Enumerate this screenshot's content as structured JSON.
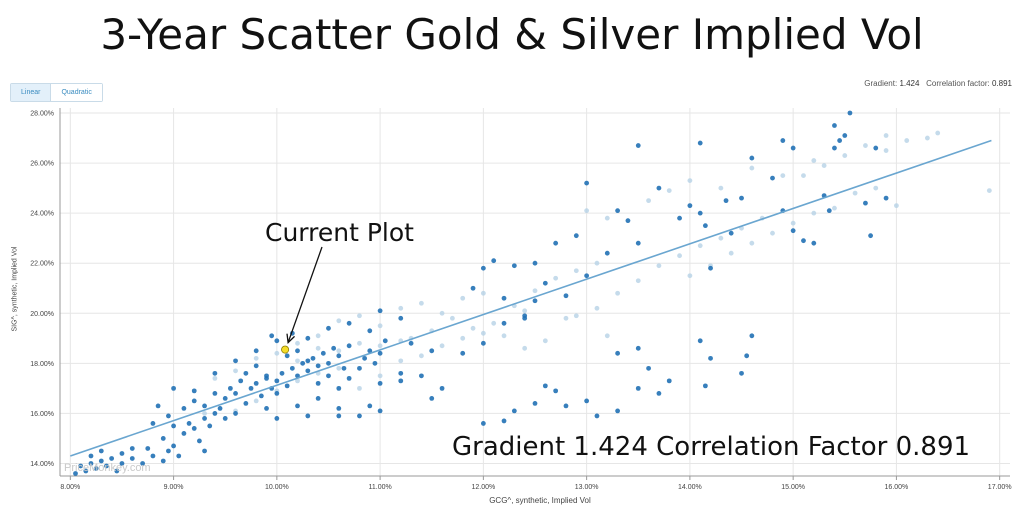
{
  "header": {
    "title": "3-Year Scatter Gold & Silver Implied Vol"
  },
  "controls": {
    "linear_label": "Linear",
    "quadratic_label": "Quadratic",
    "active": "Linear"
  },
  "stats": {
    "gradient_label": "Gradient:",
    "gradient_value": "1.424",
    "correlation_label": "Correlation factor:",
    "correlation_value": "0.891"
  },
  "annotations": {
    "current_plot": "Current Plot",
    "summary": "Gradient 1.424 Correlation Factor 0.891"
  },
  "watermark": "PriceMonkey.com",
  "colors": {
    "point_dark": "#2171b5",
    "point_light": "#b7d2e6",
    "trend": "#6aa6d0",
    "current": "#f5dd2a"
  },
  "chart_data": {
    "type": "scatter",
    "xlabel": "GCG^, synthetic, Implied Vol",
    "ylabel": "SIG^, synthetic, Implied Vol",
    "xlim": [
      7.9,
      17.1
    ],
    "ylim": [
      13.5,
      28.2
    ],
    "x_ticks": [
      "8.00%",
      "9.00%",
      "10.00%",
      "11.00%",
      "12.00%",
      "13.00%",
      "14.00%",
      "15.00%",
      "16.00%",
      "17.00%"
    ],
    "y_ticks": [
      "14.00%",
      "16.00%",
      "18.00%",
      "20.00%",
      "22.00%",
      "24.00%",
      "26.00%",
      "28.00%"
    ],
    "x_tick_values": [
      8,
      9,
      10,
      11,
      12,
      13,
      14,
      15,
      16,
      17
    ],
    "y_tick_values": [
      14,
      16,
      18,
      20,
      22,
      24,
      26,
      28
    ],
    "trendline": {
      "gradient": 1.424,
      "x": [
        8.0,
        16.92
      ],
      "y": [
        14.3,
        26.9
      ]
    },
    "current_point": {
      "x": 10.08,
      "y": 18.55
    },
    "points_dark": [
      [
        8.05,
        13.6
      ],
      [
        8.1,
        13.9
      ],
      [
        8.15,
        13.7
      ],
      [
        8.2,
        14.0
      ],
      [
        8.25,
        13.8
      ],
      [
        8.3,
        14.1
      ],
      [
        8.35,
        13.9
      ],
      [
        8.4,
        14.2
      ],
      [
        8.45,
        13.7
      ],
      [
        8.5,
        14.0
      ],
      [
        8.2,
        14.3
      ],
      [
        8.3,
        14.5
      ],
      [
        8.5,
        14.4
      ],
      [
        8.6,
        14.2
      ],
      [
        8.7,
        14.0
      ],
      [
        8.8,
        14.3
      ],
      [
        8.9,
        14.1
      ],
      [
        8.95,
        14.5
      ],
      [
        8.6,
        14.6
      ],
      [
        8.75,
        14.6
      ],
      [
        8.9,
        15.0
      ],
      [
        9.0,
        14.7
      ],
      [
        9.05,
        14.3
      ],
      [
        9.1,
        15.2
      ],
      [
        9.15,
        15.6
      ],
      [
        9.2,
        15.4
      ],
      [
        9.25,
        14.9
      ],
      [
        9.3,
        15.8
      ],
      [
        9.35,
        15.5
      ],
      [
        9.4,
        16.0
      ],
      [
        9.0,
        15.5
      ],
      [
        9.1,
        16.2
      ],
      [
        9.2,
        16.5
      ],
      [
        9.3,
        16.3
      ],
      [
        9.4,
        16.8
      ],
      [
        9.45,
        16.2
      ],
      [
        9.5,
        16.6
      ],
      [
        9.55,
        17.0
      ],
      [
        9.6,
        16.8
      ],
      [
        9.65,
        17.3
      ],
      [
        9.5,
        15.8
      ],
      [
        9.6,
        16.0
      ],
      [
        9.7,
        16.4
      ],
      [
        9.75,
        17.0
      ],
      [
        9.8,
        17.2
      ],
      [
        9.85,
        16.7
      ],
      [
        9.9,
        17.5
      ],
      [
        9.95,
        17.0
      ],
      [
        10.0,
        17.3
      ],
      [
        10.05,
        17.6
      ],
      [
        9.7,
        17.6
      ],
      [
        9.8,
        17.9
      ],
      [
        9.9,
        17.4
      ],
      [
        10.0,
        16.8
      ],
      [
        10.1,
        17.1
      ],
      [
        10.15,
        17.8
      ],
      [
        10.2,
        17.5
      ],
      [
        10.25,
        18.0
      ],
      [
        10.3,
        17.7
      ],
      [
        10.35,
        18.2
      ],
      [
        10.1,
        18.3
      ],
      [
        10.2,
        18.5
      ],
      [
        10.3,
        18.1
      ],
      [
        10.4,
        17.9
      ],
      [
        10.45,
        18.4
      ],
      [
        10.5,
        18.0
      ],
      [
        10.55,
        18.6
      ],
      [
        10.6,
        18.3
      ],
      [
        10.65,
        17.8
      ],
      [
        10.7,
        18.7
      ],
      [
        10.4,
        17.2
      ],
      [
        10.5,
        17.5
      ],
      [
        10.6,
        17.0
      ],
      [
        10.7,
        17.4
      ],
      [
        10.8,
        17.8
      ],
      [
        10.85,
        18.2
      ],
      [
        10.9,
        18.5
      ],
      [
        10.95,
        18.0
      ],
      [
        11.0,
        18.4
      ],
      [
        11.05,
        18.9
      ],
      [
        10.0,
        18.9
      ],
      [
        10.15,
        19.2
      ],
      [
        10.3,
        19.0
      ],
      [
        10.5,
        19.4
      ],
      [
        10.7,
        19.6
      ],
      [
        10.9,
        19.3
      ],
      [
        11.0,
        20.1
      ],
      [
        11.2,
        19.8
      ],
      [
        11.3,
        18.8
      ],
      [
        11.5,
        18.5
      ],
      [
        9.9,
        16.2
      ],
      [
        10.0,
        15.8
      ],
      [
        10.2,
        16.3
      ],
      [
        10.3,
        15.9
      ],
      [
        10.4,
        16.6
      ],
      [
        10.6,
        16.2
      ],
      [
        10.8,
        15.9
      ],
      [
        11.0,
        17.2
      ],
      [
        11.2,
        17.6
      ],
      [
        11.4,
        17.5
      ],
      [
        9.0,
        17.0
      ],
      [
        9.2,
        16.9
      ],
      [
        9.4,
        17.6
      ],
      [
        9.6,
        18.1
      ],
      [
        9.8,
        18.5
      ],
      [
        9.95,
        19.1
      ],
      [
        8.95,
        15.9
      ],
      [
        8.85,
        16.3
      ],
      [
        8.8,
        15.6
      ],
      [
        9.3,
        14.5
      ],
      [
        11.6,
        17.0
      ],
      [
        11.8,
        18.4
      ],
      [
        12.0,
        18.8
      ],
      [
        12.2,
        19.6
      ],
      [
        12.4,
        19.9
      ],
      [
        12.5,
        20.5
      ],
      [
        12.6,
        21.2
      ],
      [
        12.8,
        20.7
      ],
      [
        13.0,
        21.5
      ],
      [
        13.2,
        22.4
      ],
      [
        12.0,
        21.8
      ],
      [
        12.1,
        22.1
      ],
      [
        12.3,
        21.9
      ],
      [
        12.5,
        22.0
      ],
      [
        12.7,
        22.8
      ],
      [
        12.9,
        23.1
      ],
      [
        13.0,
        25.2
      ],
      [
        13.3,
        24.1
      ],
      [
        13.4,
        23.7
      ],
      [
        13.5,
        22.8
      ],
      [
        13.5,
        26.7
      ],
      [
        13.7,
        25.0
      ],
      [
        13.9,
        23.8
      ],
      [
        14.0,
        24.3
      ],
      [
        14.1,
        24.0
      ],
      [
        14.15,
        23.5
      ],
      [
        14.2,
        21.8
      ],
      [
        14.35,
        24.5
      ],
      [
        14.4,
        23.2
      ],
      [
        14.5,
        24.6
      ],
      [
        14.1,
        26.8
      ],
      [
        14.6,
        26.2
      ],
      [
        14.8,
        25.4
      ],
      [
        14.9,
        24.1
      ],
      [
        15.0,
        23.3
      ],
      [
        15.1,
        22.9
      ],
      [
        15.2,
        22.8
      ],
      [
        15.3,
        24.7
      ],
      [
        15.35,
        24.1
      ],
      [
        15.4,
        26.6
      ],
      [
        15.45,
        26.9
      ],
      [
        15.5,
        27.1
      ],
      [
        15.55,
        28.0
      ],
      [
        15.4,
        27.5
      ],
      [
        15.8,
        26.6
      ],
      [
        15.7,
        24.4
      ],
      [
        15.75,
        23.1
      ],
      [
        15.9,
        24.6
      ],
      [
        14.9,
        26.9
      ],
      [
        15.0,
        26.6
      ],
      [
        12.0,
        15.6
      ],
      [
        12.2,
        15.7
      ],
      [
        12.3,
        16.1
      ],
      [
        12.6,
        17.1
      ],
      [
        12.8,
        16.3
      ],
      [
        13.0,
        16.5
      ],
      [
        13.1,
        15.9
      ],
      [
        13.3,
        16.1
      ],
      [
        13.5,
        17.0
      ],
      [
        13.6,
        17.8
      ],
      [
        13.3,
        18.4
      ],
      [
        13.5,
        18.6
      ],
      [
        13.7,
        16.8
      ],
      [
        13.8,
        17.3
      ],
      [
        14.1,
        18.9
      ],
      [
        14.15,
        17.1
      ],
      [
        14.2,
        18.2
      ],
      [
        14.5,
        17.6
      ],
      [
        14.55,
        18.3
      ],
      [
        14.6,
        19.1
      ],
      [
        12.5,
        16.4
      ],
      [
        12.7,
        16.9
      ],
      [
        11.5,
        16.6
      ],
      [
        11.2,
        17.3
      ],
      [
        10.9,
        16.3
      ],
      [
        10.6,
        15.9
      ],
      [
        11.0,
        16.1
      ],
      [
        12.4,
        19.8
      ],
      [
        12.2,
        20.6
      ],
      [
        11.9,
        21.0
      ]
    ],
    "points_light": [
      [
        10.2,
        18.8
      ],
      [
        10.4,
        19.1
      ],
      [
        10.6,
        19.7
      ],
      [
        10.8,
        19.9
      ],
      [
        11.0,
        19.5
      ],
      [
        11.2,
        20.2
      ],
      [
        11.4,
        20.4
      ],
      [
        11.6,
        20.0
      ],
      [
        11.8,
        20.6
      ],
      [
        12.0,
        20.8
      ],
      [
        11.3,
        19.0
      ],
      [
        11.5,
        19.3
      ],
      [
        11.7,
        19.8
      ],
      [
        11.9,
        19.4
      ],
      [
        12.1,
        19.6
      ],
      [
        12.3,
        20.3
      ],
      [
        12.5,
        20.9
      ],
      [
        12.7,
        21.4
      ],
      [
        12.9,
        21.7
      ],
      [
        13.1,
        22.0
      ],
      [
        12.9,
        19.9
      ],
      [
        13.1,
        20.2
      ],
      [
        13.3,
        20.8
      ],
      [
        13.5,
        21.3
      ],
      [
        13.7,
        21.9
      ],
      [
        13.9,
        22.3
      ],
      [
        14.1,
        22.7
      ],
      [
        14.3,
        23.0
      ],
      [
        14.5,
        23.4
      ],
      [
        14.7,
        23.8
      ],
      [
        14.0,
        21.5
      ],
      [
        14.2,
        21.9
      ],
      [
        14.4,
        22.4
      ],
      [
        14.6,
        22.8
      ],
      [
        14.8,
        23.2
      ],
      [
        15.0,
        23.6
      ],
      [
        15.2,
        24.0
      ],
      [
        15.4,
        24.2
      ],
      [
        15.6,
        24.8
      ],
      [
        15.8,
        25.0
      ],
      [
        15.1,
        25.5
      ],
      [
        15.3,
        25.9
      ],
      [
        15.5,
        26.3
      ],
      [
        15.7,
        26.7
      ],
      [
        15.9,
        26.5
      ],
      [
        16.1,
        26.9
      ],
      [
        16.3,
        27.0
      ],
      [
        16.4,
        27.2
      ],
      [
        16.9,
        24.9
      ],
      [
        16.0,
        24.3
      ],
      [
        10.8,
        17.0
      ],
      [
        11.0,
        17.5
      ],
      [
        11.2,
        18.1
      ],
      [
        11.4,
        18.3
      ],
      [
        11.6,
        18.7
      ],
      [
        11.8,
        19.0
      ],
      [
        12.0,
        19.2
      ],
      [
        12.2,
        19.1
      ],
      [
        12.4,
        18.6
      ],
      [
        12.6,
        18.9
      ],
      [
        9.4,
        17.4
      ],
      [
        9.6,
        17.7
      ],
      [
        9.8,
        18.2
      ],
      [
        10.0,
        18.4
      ],
      [
        10.2,
        18.1
      ],
      [
        10.4,
        18.6
      ],
      [
        10.6,
        18.5
      ],
      [
        10.8,
        18.8
      ],
      [
        11.0,
        18.7
      ],
      [
        11.2,
        18.9
      ],
      [
        13.0,
        24.1
      ],
      [
        13.2,
        23.8
      ],
      [
        13.6,
        24.5
      ],
      [
        13.8,
        24.9
      ],
      [
        14.0,
        25.3
      ],
      [
        14.3,
        25.0
      ],
      [
        14.6,
        25.8
      ],
      [
        14.9,
        25.5
      ],
      [
        15.2,
        26.1
      ],
      [
        15.9,
        27.1
      ],
      [
        9.3,
        16.0
      ],
      [
        9.6,
        16.1
      ],
      [
        9.8,
        16.5
      ],
      [
        10.0,
        16.9
      ],
      [
        10.2,
        17.3
      ],
      [
        10.4,
        17.6
      ],
      [
        10.6,
        17.8
      ],
      [
        12.4,
        20.1
      ],
      [
        12.8,
        19.8
      ],
      [
        13.2,
        19.1
      ]
    ]
  }
}
